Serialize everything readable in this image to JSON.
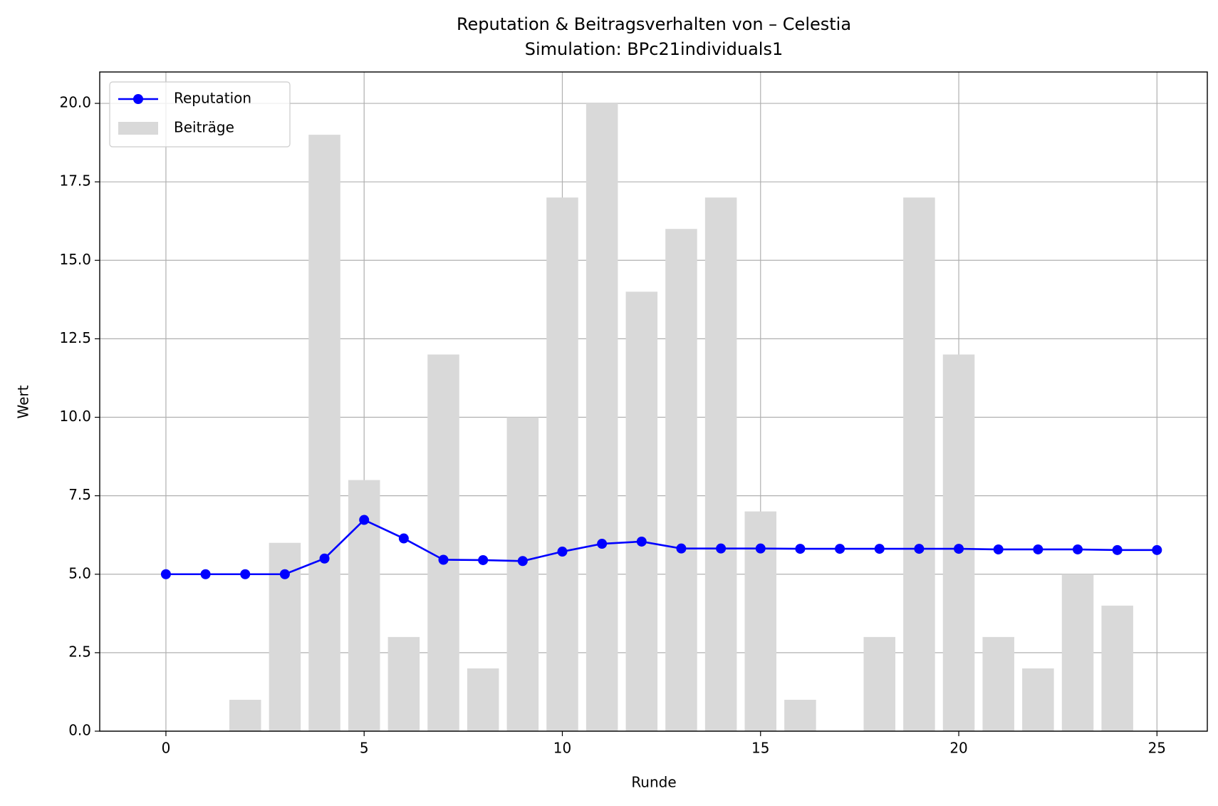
{
  "chart_data": {
    "type": "bar",
    "title": "Reputation & Beitragsverhalten von – Celestia",
    "subtitle": "Simulation: BPc21individuals1",
    "x_label": "Runde",
    "y_label": "Wert",
    "xlim": [
      -1.67,
      26.27
    ],
    "xticks": [
      0,
      5,
      10,
      15,
      20,
      25
    ],
    "ylim": [
      0,
      21
    ],
    "yticks": [
      {
        "value": 0,
        "label": "0.0"
      },
      2.5,
      {
        "value": 5,
        "label": "5.0"
      },
      7.5,
      {
        "value": 10,
        "label": "10.0"
      },
      12.5,
      {
        "value": 15,
        "label": "15.0"
      },
      17.5,
      {
        "value": 20,
        "label": "20.0"
      }
    ],
    "grid": true,
    "legend": "upper left",
    "bar_width": 0.8,
    "series": [
      {
        "name": "Reputation",
        "type": "line",
        "color": "#0000ff",
        "x": [
          0,
          1,
          2,
          3,
          4,
          5,
          6,
          7,
          8,
          9,
          10,
          11,
          12,
          13,
          14,
          15,
          16,
          17,
          18,
          19,
          20,
          21,
          22,
          23,
          24,
          25
        ],
        "values": [
          5,
          5,
          5,
          5,
          5.5,
          6.73,
          6.14,
          5.46,
          5.45,
          5.42,
          5.72,
          5.97,
          6.04,
          5.82,
          5.82,
          5.82,
          5.81,
          5.81,
          5.81,
          5.81,
          5.81,
          5.79,
          5.79,
          5.79,
          5.77,
          5.77
        ]
      },
      {
        "name": "Beiträge",
        "type": "bar",
        "color": "#d9d9d9",
        "x": [
          0,
          1,
          2,
          3,
          4,
          5,
          6,
          7,
          8,
          9,
          10,
          11,
          12,
          13,
          14,
          15,
          16,
          17,
          18,
          19,
          20,
          21,
          22,
          23,
          24
        ],
        "values": [
          0,
          0,
          1,
          6,
          19,
          8,
          3,
          12,
          2,
          10,
          17,
          20,
          14,
          16,
          17,
          7,
          1,
          0,
          3,
          17,
          12,
          3,
          2,
          5,
          4
        ]
      }
    ]
  }
}
